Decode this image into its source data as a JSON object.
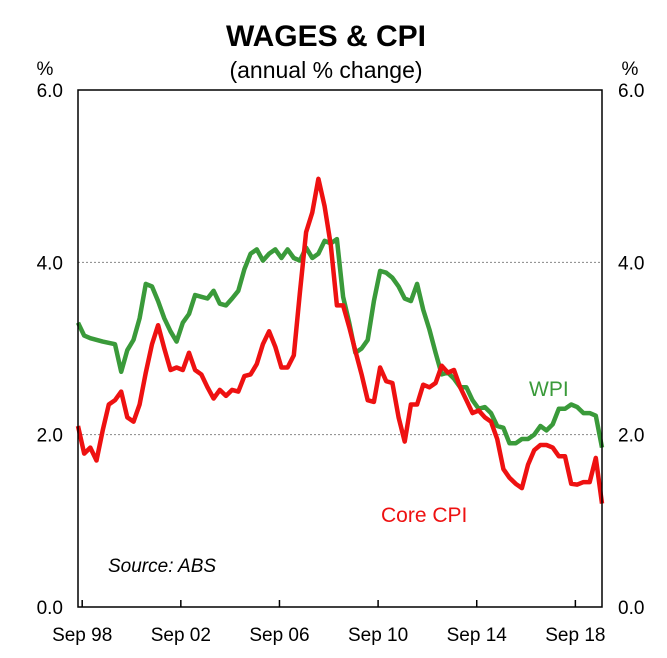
{
  "chart_data": {
    "type": "line",
    "title": "WAGES & CPI",
    "subtitle": "(annual % change)",
    "y_unit_left": "%",
    "y_unit_right": "%",
    "ylim": [
      0,
      6
    ],
    "y_ticks": [
      "0.0",
      "2.0",
      "4.0",
      "6.0"
    ],
    "y_tick_values": [
      0,
      2,
      4,
      6
    ],
    "xlim": [
      1998.5,
      2019.75
    ],
    "x_ticks": [
      "Sep 98",
      "Sep 02",
      "Sep 06",
      "Sep 10",
      "Sep 14",
      "Sep 18"
    ],
    "x_tick_values": [
      1998.67,
      2002.67,
      2006.67,
      2010.67,
      2014.67,
      2018.67
    ],
    "grid": true,
    "source": "Source: ABS",
    "colors": {
      "WPI": "#3a9a3a",
      "Core CPI": "#ee1111"
    },
    "series": [
      {
        "name": "WPI",
        "label": "WPI",
        "x": [
          1998.5,
          1998.75,
          1999.0,
          1999.5,
          2000.0,
          2000.25,
          2000.5,
          2000.75,
          2001.0,
          2001.25,
          2001.5,
          2001.75,
          2002.0,
          2002.25,
          2002.5,
          2002.75,
          2003.0,
          2003.25,
          2003.5,
          2003.75,
          2004.0,
          2004.25,
          2004.5,
          2004.75,
          2005.0,
          2005.25,
          2005.5,
          2005.75,
          2006.0,
          2006.25,
          2006.5,
          2006.75,
          2007.0,
          2007.25,
          2007.5,
          2007.75,
          2008.0,
          2008.25,
          2008.5,
          2008.75,
          2009.0,
          2009.25,
          2009.5,
          2009.75,
          2010.0,
          2010.25,
          2010.5,
          2010.75,
          2011.0,
          2011.25,
          2011.5,
          2011.75,
          2012.0,
          2012.25,
          2012.5,
          2012.75,
          2013.0,
          2013.25,
          2013.5,
          2013.75,
          2014.0,
          2014.25,
          2014.5,
          2014.75,
          2015.0,
          2015.25,
          2015.5,
          2015.75,
          2016.0,
          2016.25,
          2016.5,
          2016.75,
          2017.0,
          2017.25,
          2017.5,
          2017.75,
          2018.0,
          2018.25,
          2018.5,
          2018.75,
          2019.0,
          2019.25,
          2019.5,
          2019.75
        ],
        "values": [
          3.3,
          3.15,
          3.12,
          3.08,
          3.05,
          2.73,
          2.98,
          3.1,
          3.35,
          3.75,
          3.72,
          3.55,
          3.35,
          3.2,
          3.08,
          3.3,
          3.4,
          3.62,
          3.6,
          3.58,
          3.67,
          3.52,
          3.5,
          3.58,
          3.67,
          3.92,
          4.1,
          4.15,
          4.02,
          4.1,
          4.15,
          4.05,
          4.15,
          4.05,
          4.02,
          4.17,
          4.05,
          4.1,
          4.25,
          4.22,
          4.27,
          3.6,
          3.3,
          2.95,
          3.0,
          3.1,
          3.55,
          3.9,
          3.88,
          3.82,
          3.72,
          3.58,
          3.55,
          3.75,
          3.45,
          3.22,
          2.95,
          2.7,
          2.72,
          2.65,
          2.55,
          2.55,
          2.4,
          2.3,
          2.32,
          2.25,
          2.1,
          2.08,
          1.9,
          1.9,
          1.95,
          1.95,
          2.0,
          2.1,
          2.05,
          2.12,
          2.3,
          2.3,
          2.35,
          2.32,
          2.25,
          2.25,
          2.22,
          1.85
        ]
      },
      {
        "name": "Core CPI",
        "label": "Core CPI",
        "x": [
          1998.5,
          1998.75,
          1999.0,
          1999.25,
          1999.5,
          1999.75,
          2000.0,
          2000.25,
          2000.5,
          2000.75,
          2001.0,
          2001.25,
          2001.5,
          2001.75,
          2002.0,
          2002.25,
          2002.5,
          2002.75,
          2003.0,
          2003.25,
          2003.5,
          2003.75,
          2004.0,
          2004.25,
          2004.5,
          2004.75,
          2005.0,
          2005.25,
          2005.5,
          2005.75,
          2006.0,
          2006.25,
          2006.5,
          2006.75,
          2007.0,
          2007.25,
          2007.5,
          2007.75,
          2008.0,
          2008.25,
          2008.5,
          2008.75,
          2009.0,
          2009.25,
          2009.5,
          2009.75,
          2010.0,
          2010.25,
          2010.5,
          2010.75,
          2011.0,
          2011.25,
          2011.5,
          2011.75,
          2012.0,
          2012.25,
          2012.5,
          2012.75,
          2013.0,
          2013.25,
          2013.5,
          2013.75,
          2014.0,
          2014.25,
          2014.5,
          2014.75,
          2015.0,
          2015.25,
          2015.5,
          2015.75,
          2016.0,
          2016.25,
          2016.5,
          2016.75,
          2017.0,
          2017.25,
          2017.5,
          2017.75,
          2018.0,
          2018.25,
          2018.5,
          2018.75,
          2019.0,
          2019.25,
          2019.5,
          2019.75
        ],
        "values": [
          2.1,
          1.78,
          1.85,
          1.7,
          2.05,
          2.35,
          2.4,
          2.5,
          2.2,
          2.15,
          2.35,
          2.72,
          3.05,
          3.27,
          3.0,
          2.75,
          2.78,
          2.75,
          2.95,
          2.75,
          2.7,
          2.55,
          2.42,
          2.52,
          2.45,
          2.52,
          2.5,
          2.68,
          2.7,
          2.82,
          3.05,
          3.2,
          3.02,
          2.78,
          2.78,
          2.92,
          3.65,
          4.35,
          4.58,
          4.97,
          4.65,
          4.2,
          3.5,
          3.5,
          3.25,
          2.97,
          2.7,
          2.4,
          2.38,
          2.78,
          2.62,
          2.6,
          2.2,
          1.92,
          2.35,
          2.35,
          2.58,
          2.55,
          2.6,
          2.8,
          2.72,
          2.75,
          2.55,
          2.4,
          2.25,
          2.28,
          2.2,
          2.15,
          1.95,
          1.6,
          1.5,
          1.43,
          1.38,
          1.65,
          1.82,
          1.88,
          1.88,
          1.85,
          1.75,
          1.75,
          1.43,
          1.42,
          1.45,
          1.45,
          1.73,
          1.2
        ]
      }
    ]
  }
}
